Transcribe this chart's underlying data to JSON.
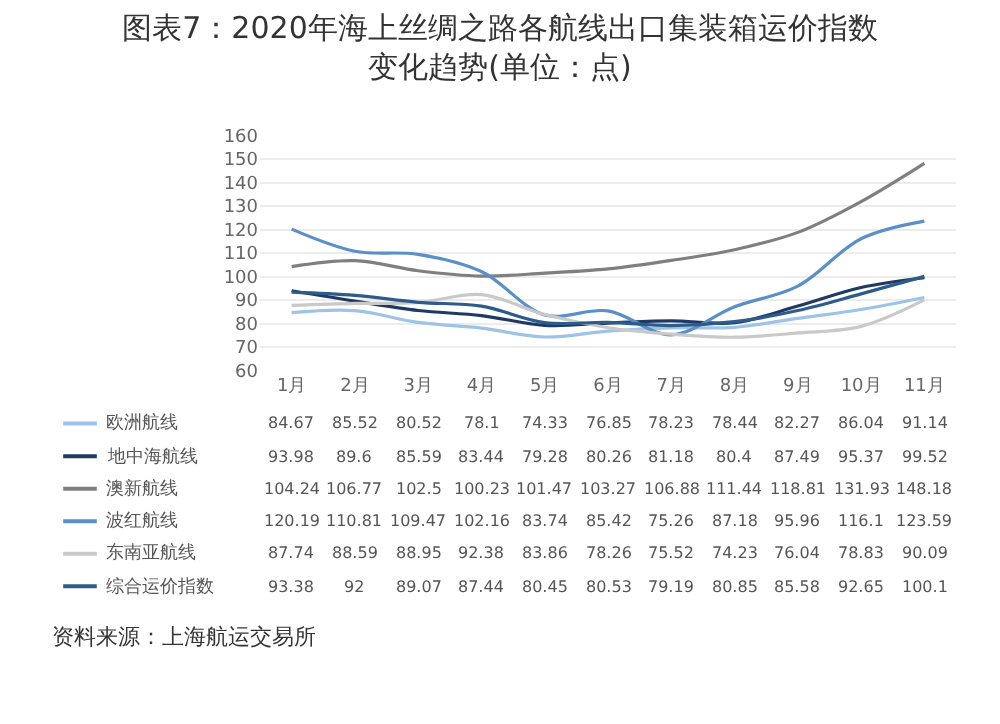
{
  "chart_data": {
    "type": "line",
    "title": "图表7：2020年海上丝绸之路各航线出口集装箱运价指数变化趋势(单位：点)",
    "categories": [
      "1月",
      "2月",
      "3月",
      "4月",
      "5月",
      "6月",
      "7月",
      "8月",
      "9月",
      "10月",
      "11月"
    ],
    "ylim": [
      60,
      160
    ],
    "yticks": [
      60,
      70,
      80,
      90,
      100,
      110,
      120,
      130,
      140,
      150,
      160
    ],
    "grid": "y",
    "legend": "bottom left",
    "marker": "none",
    "line_style": "solid",
    "data_labels": true,
    "series": [
      {
        "name": "欧洲航线",
        "color": "#9dc3e6",
        "values": [
          84.67,
          85.52,
          80.52,
          78.1,
          74.33,
          76.85,
          78.23,
          78.44,
          82.27,
          86.04,
          91.14
        ]
      },
      {
        "name": "地中海航线",
        "color": "#1f3864",
        "values": [
          93.98,
          89.6,
          85.59,
          83.44,
          79.28,
          80.26,
          81.18,
          80.4,
          87.49,
          95.37,
          99.52
        ]
      },
      {
        "name": "澳新航线",
        "color": "#7f7f7f",
        "values": [
          104.24,
          106.77,
          102.5,
          100.23,
          101.47,
          103.27,
          106.88,
          111.44,
          118.81,
          131.93,
          148.18
        ]
      },
      {
        "name": "波红航线",
        "color": "#5b8fc7",
        "values": [
          120.19,
          110.81,
          109.47,
          102.16,
          83.74,
          85.42,
          75.26,
          87.18,
          95.96,
          116.1,
          123.59
        ]
      },
      {
        "name": "东南亚航线",
        "color": "#c9c9c9",
        "values": [
          87.74,
          88.59,
          88.95,
          92.38,
          83.86,
          78.26,
          75.52,
          74.23,
          76.04,
          78.83,
          90.09
        ]
      },
      {
        "name": "综合运价指数",
        "color": "#2e5c8a",
        "values": [
          93.38,
          92,
          89.07,
          87.44,
          80.45,
          80.53,
          79.19,
          80.85,
          85.58,
          92.65,
          100.1
        ]
      }
    ],
    "annotations": [
      "资料来源：上海航运交易所"
    ]
  }
}
